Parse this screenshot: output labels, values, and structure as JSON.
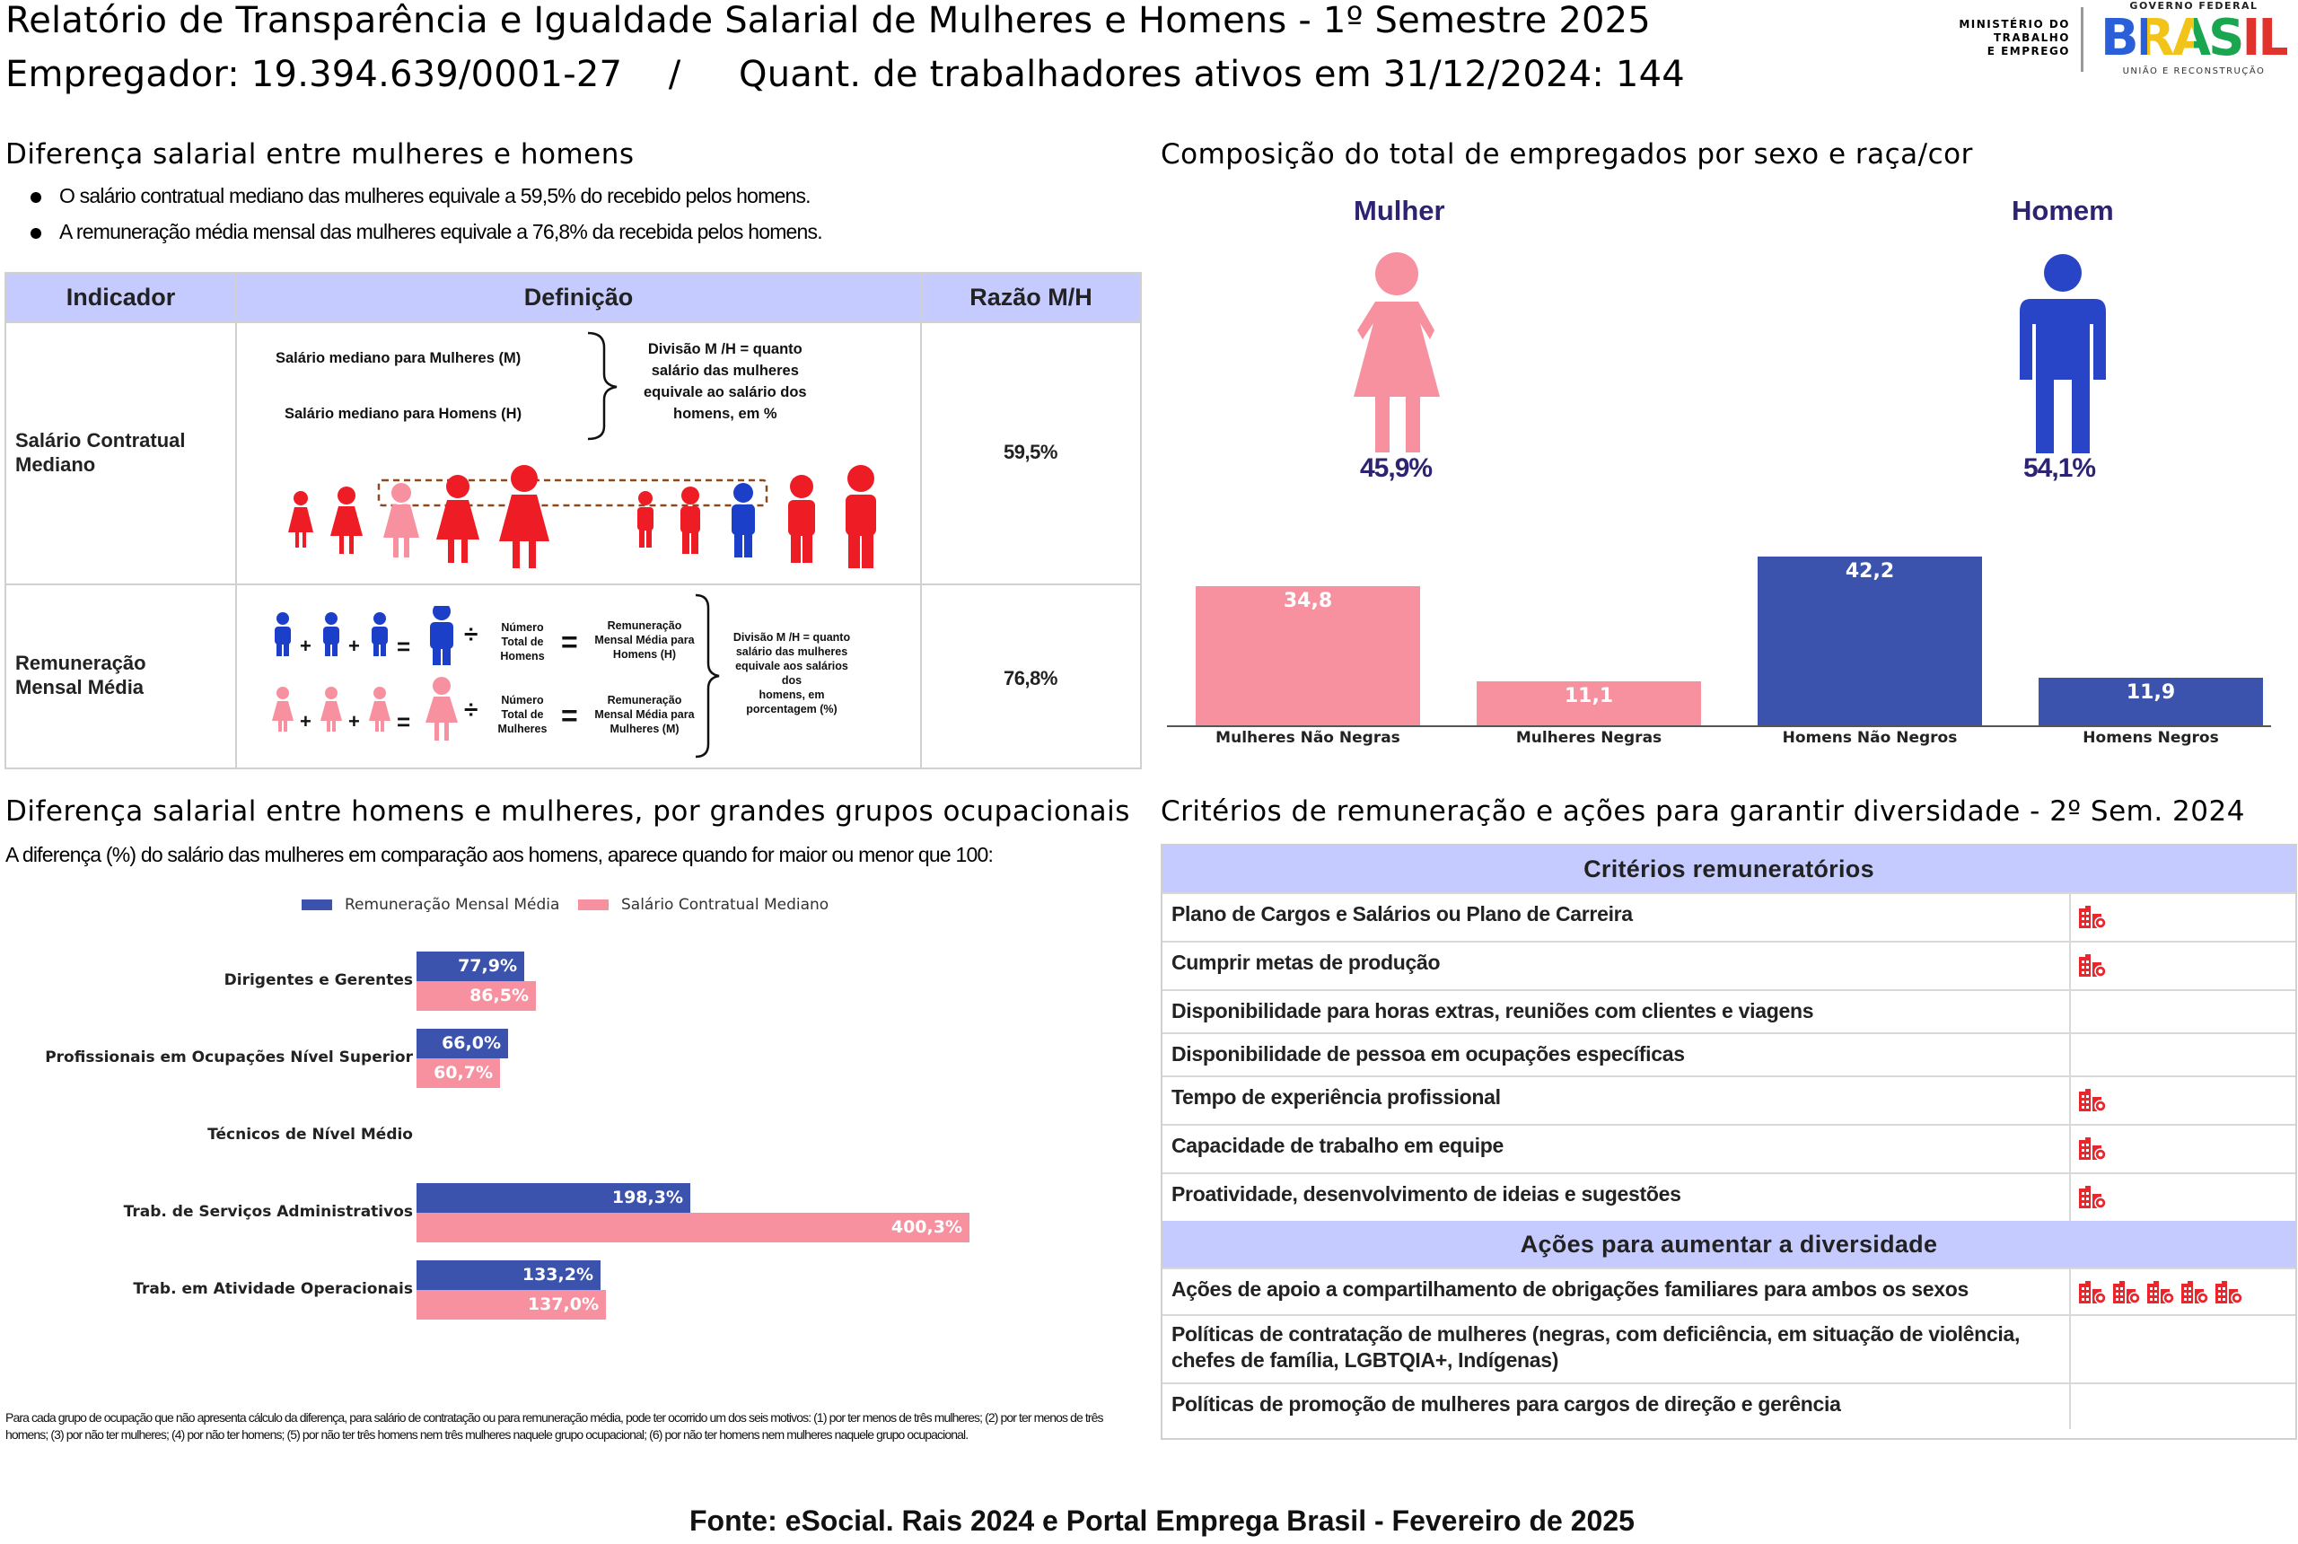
{
  "header": {
    "title": "Relatório de Transparência e Igualdade Salarial de Mulheres e Homens - 1º Semestre 2025",
    "employer": "Empregador: 19.394.639/0001-27    /     Quant. de trabalhadores ativos em 31/12/2024: 144",
    "ministry_line1": "MINISTÉRIO DO",
    "ministry_line2": "TRABALHO",
    "ministry_line3": "E EMPREGO",
    "gov_top": "GOVERNO FEDERAL",
    "gov_logo": "BRASIL",
    "gov_bottom": "UNIÃO E RECONSTRUÇÃO"
  },
  "salary_diff": {
    "heading": "Diferença salarial entre mulheres e homens",
    "bullet1": "O salário contratual mediano das mulheres equivale a 59,5% do recebido pelos homens.",
    "bullet2": "A remuneração média mensal das mulheres equivale a 76,8% da recebida pelos homens."
  },
  "indicator_table": {
    "col_indicator": "Indicador",
    "col_definition": "Definição",
    "col_ratio": "Razão M/H",
    "row1": {
      "label_line1": "Salário Contratual",
      "label_line2": "Mediano",
      "def_women": "Salário mediano para Mulheres (M)",
      "def_men": "Salário mediano para Homens (H)",
      "def_div_line1": "Divisão M /H = quanto",
      "def_div_line2": "salário das mulheres",
      "def_div_line3": "equivale ao salário dos",
      "def_div_line4": "homens, em %",
      "ratio": "59,5%"
    },
    "row2": {
      "label_line1": "Remuneração",
      "label_line2": "Mensal Média",
      "num_men_line1": "Número",
      "num_men_line2": "Total de",
      "num_men_line3": "Homens",
      "rem_men_line1": "Remuneração",
      "rem_men_line2": "Mensal Média para",
      "rem_men_line3": "Homens (H)",
      "num_women_line1": "Número",
      "num_women_line2": "Total de",
      "num_women_line3": "Mulheres",
      "rem_women_line1": "Remuneração",
      "rem_women_line2": "Mensal Média para",
      "rem_women_line3": "Mulheres (M)",
      "div_line1": "Divisão M /H = quanto",
      "div_line2": "salário das mulheres",
      "div_line3": "equivale aos salários",
      "div_line4": "dos",
      "div_line5": "homens, em",
      "div_line6": "porcentagem (%)",
      "ratio": "76,8%"
    },
    "symbols": {
      "plus": "+",
      "equals": "=",
      "divide": "÷"
    }
  },
  "composition": {
    "heading": "Composição do total de empregados por sexo e raça/cor",
    "woman_label": "Mulher",
    "man_label": "Homem",
    "woman_pct": "45,9%",
    "man_pct": "54,1%",
    "colors": {
      "woman": "#f7919f",
      "man": "#2845c8"
    }
  },
  "chart_data": [
    {
      "type": "bar",
      "categories": [
        "Mulheres Não Negras",
        "Mulheres Negras",
        "Homens Não Negros",
        "Homens Negros"
      ],
      "values": [
        34.8,
        11.1,
        42.2,
        11.9
      ],
      "value_labels": [
        "34,8",
        "11,1",
        "42,2",
        "11,9"
      ],
      "colors": [
        "#f7919f",
        "#f7919f",
        "#3b53ac",
        "#3b53ac"
      ],
      "ylim": [
        0,
        42.2
      ],
      "grid": false
    },
    {
      "type": "bar",
      "orientation": "horizontal",
      "categories": [
        "Dirigentes e Gerentes",
        "Profissionais em Ocupações Nível Superior",
        "Técnicos de Nível Médio",
        "Trab. de Serviços Administrativos",
        "Trab. em Atividade Operacionais"
      ],
      "series": [
        {
          "name": "Remuneração Mensal Média",
          "values": [
            77.9,
            66.0,
            null,
            198.3,
            133.2
          ],
          "labels": [
            "77,9%",
            "66,0%",
            "",
            "198,3%",
            "133,2%"
          ],
          "color": "#3b53ac"
        },
        {
          "name": "Salário Contratual Mediano",
          "values": [
            86.5,
            60.7,
            null,
            400.3,
            137.0
          ],
          "labels": [
            "86,5%",
            "60,7%",
            "",
            "400,3%",
            "137,0%"
          ],
          "color": "#f7919f"
        }
      ],
      "xlim": [
        0,
        400.3
      ],
      "legend": "top"
    }
  ],
  "occupation": {
    "heading": "Diferença salarial entre homens e mulheres, por grandes grupos ocupacionais",
    "subtitle": "A diferença (%) do salário das mulheres em comparação aos homens, aparece quando for maior ou menor que 100:",
    "note": "Para cada grupo de ocupação que não apresenta cálculo da diferença, para salário de contratação ou para remuneração média, pode ter ocorrido um dos seis motivos: (1) por ter menos de três mulheres; (2) por ter menos de três homens; (3) por não ter mulheres; (4) por não ter homens; (5) por não ter três homens nem três mulheres naquele grupo ocupacional; (6) por não ter homens nem mulheres naquele grupo ocupacional."
  },
  "criteria": {
    "heading": "Critérios de remuneração e ações para garantir diversidade - 2º Sem. 2024",
    "block1_title": "Critérios remuneratórios",
    "rows1": [
      {
        "text": "Plano de Cargos e Salários ou Plano de Carreira",
        "icons": 1
      },
      {
        "text": "Cumprir metas de produção",
        "icons": 1
      },
      {
        "text": "Disponibilidade para horas extras, reuniões com clientes e viagens",
        "icons": 0
      },
      {
        "text": "Disponibilidade de pessoa em ocupações específicas",
        "icons": 0
      },
      {
        "text": "Tempo de experiência profissional",
        "icons": 1
      },
      {
        "text": "Capacidade de trabalho em equipe",
        "icons": 1
      },
      {
        "text": "Proatividade, desenvolvimento de ideias e sugestões",
        "icons": 1
      }
    ],
    "block2_title": "Ações para aumentar a diversidade",
    "rows2": [
      {
        "text": "Ações de apoio a compartilhamento de obrigações familiares para ambos os sexos",
        "icons": 5
      },
      {
        "text": "Políticas de contratação de mulheres (negras, com deficiência, em situação de violência, chefes de família, LGBTQIA+, Indígenas)",
        "icons": 0
      },
      {
        "text": "Políticas de promoção de mulheres para cargos de direção e gerência",
        "icons": 0
      }
    ],
    "icon_name": "company-building-icon",
    "icon_color": "#e8262c"
  },
  "footer": {
    "source": "Fonte: eSocial. Rais 2024 e Portal Emprega Brasil - Fevereiro de 2025"
  }
}
